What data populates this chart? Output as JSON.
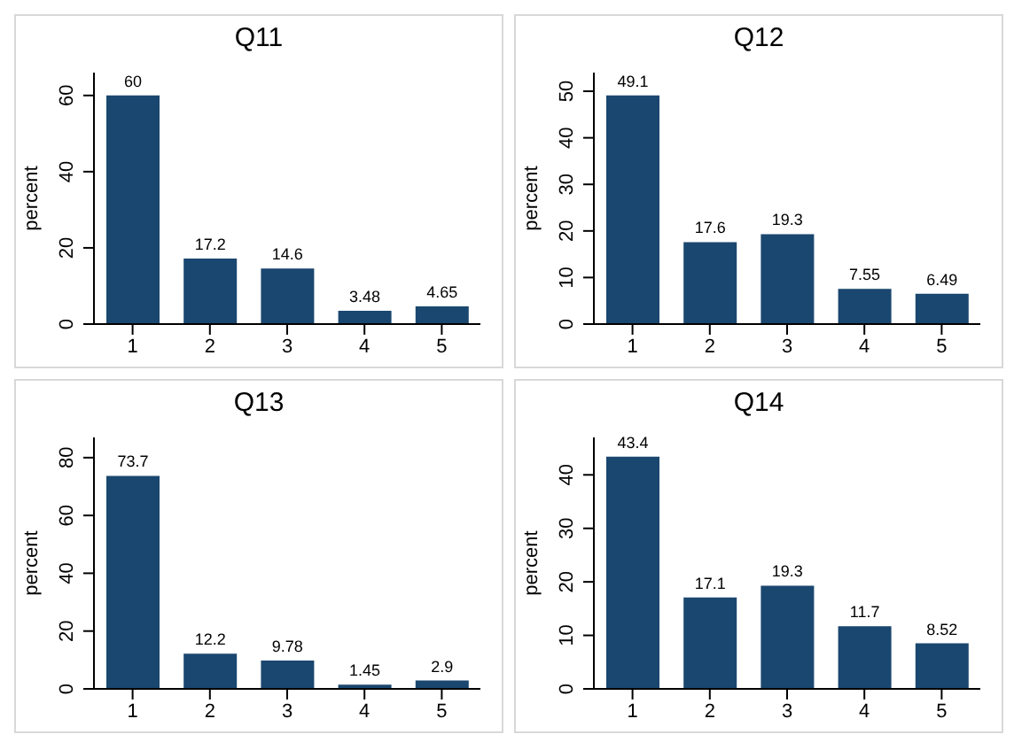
{
  "chart_data": [
    {
      "type": "bar",
      "title": "Q11",
      "ylabel": "percent",
      "categories": [
        "1",
        "2",
        "3",
        "4",
        "5"
      ],
      "values": [
        60,
        17.2,
        14.6,
        3.48,
        4.65
      ],
      "color": "#1a476f",
      "ylim": [
        0,
        66
      ],
      "yticks": [
        0,
        20,
        40,
        60
      ],
      "data_labels": true
    },
    {
      "type": "bar",
      "title": "Q12",
      "ylabel": "percent",
      "categories": [
        "1",
        "2",
        "3",
        "4",
        "5"
      ],
      "values": [
        49.1,
        17.6,
        19.3,
        7.55,
        6.49
      ],
      "color": "#1a476f",
      "ylim": [
        0,
        54
      ],
      "yticks": [
        0,
        10,
        20,
        30,
        40,
        50
      ],
      "data_labels": true
    },
    {
      "type": "bar",
      "title": "Q13",
      "ylabel": "percent",
      "categories": [
        "1",
        "2",
        "3",
        "4",
        "5"
      ],
      "values": [
        73.7,
        12.2,
        9.78,
        1.45,
        2.9
      ],
      "color": "#1a476f",
      "ylim": [
        0,
        87
      ],
      "yticks": [
        0,
        20,
        40,
        60,
        80
      ],
      "data_labels": true
    },
    {
      "type": "bar",
      "title": "Q14",
      "ylabel": "percent",
      "categories": [
        "1",
        "2",
        "3",
        "4",
        "5"
      ],
      "values": [
        43.4,
        17.1,
        19.3,
        11.7,
        8.52
      ],
      "color": "#1a476f",
      "ylim": [
        0,
        47
      ],
      "yticks": [
        0,
        10,
        20,
        30,
        40
      ],
      "data_labels": true
    }
  ]
}
